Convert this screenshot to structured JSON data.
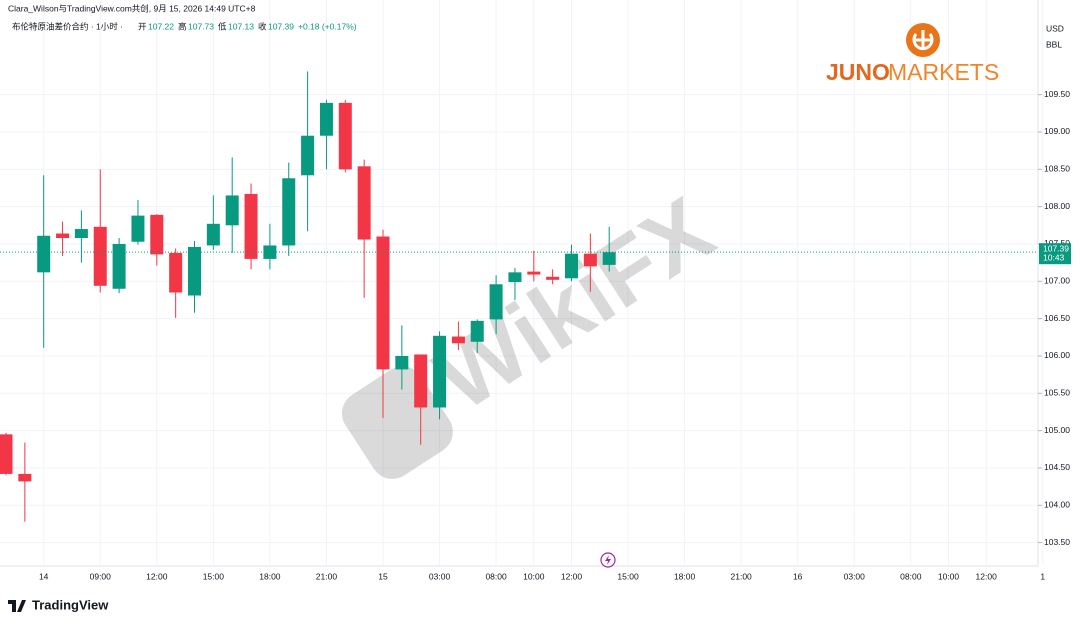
{
  "header": {
    "source": "Clara_Wilson与TradingView.com共创, 9月 15, 2026 14:49 UTC+8",
    "symbol": "布伦特原油差价合约 · 1小时 ·",
    "open_label": "开",
    "high_label": "高",
    "low_label": "低",
    "close_label": "收",
    "change": "+0.18 (+0.17%)"
  },
  "logo": {
    "brand": "JUNO",
    "suffix": "MARKETS"
  },
  "watermark": "WikiFX",
  "footer": "TradingView",
  "chart_data": {
    "type": "candlestick",
    "currency": "USD",
    "unit": "BBL",
    "countdown": "10:43",
    "up_color": "#089981",
    "down_color": "#f23645",
    "grid": true,
    "categories": [
      null,
      null,
      "14",
      null,
      null,
      "09:00",
      null,
      null,
      "12:00",
      null,
      null,
      "15:00",
      null,
      null,
      "18:00",
      null,
      null,
      "21:00",
      null,
      null,
      "15",
      null,
      null,
      "03:00",
      null,
      null,
      "08:00",
      null,
      "10:00",
      null,
      "12:00",
      null,
      null,
      "15:00",
      null,
      null,
      "18:00",
      null,
      null,
      "21:00",
      null,
      null,
      "16",
      null,
      null,
      "03:00",
      null,
      null,
      "08:00",
      null,
      "10:00",
      null,
      "12:00",
      null,
      null,
      "1"
    ],
    "open": [
      104.95,
      104.42,
      107.12,
      107.64,
      107.58,
      107.73,
      106.9,
      107.53,
      107.89,
      107.38,
      106.81,
      107.48,
      107.75,
      108.17,
      107.3,
      107.48,
      108.42,
      108.95,
      109.39,
      108.54,
      107.6,
      105.82,
      106.02,
      105.31,
      106.26,
      106.19,
      106.49,
      106.99,
      107.13,
      107.06,
      107.04,
      107.37,
      107.22,
      null,
      null,
      null,
      null,
      null,
      null,
      null,
      null,
      null,
      null,
      null,
      null,
      null,
      null,
      null,
      null,
      null,
      null,
      null,
      null,
      null,
      null,
      null
    ],
    "high": [
      104.97,
      104.84,
      108.42,
      107.8,
      107.95,
      108.5,
      107.58,
      108.09,
      107.9,
      107.44,
      107.54,
      108.15,
      108.66,
      108.31,
      107.77,
      108.59,
      109.81,
      109.43,
      109.43,
      108.63,
      107.69,
      106.41,
      106.02,
      106.33,
      106.46,
      106.49,
      107.08,
      107.18,
      107.41,
      107.16,
      107.49,
      107.64,
      107.73,
      null,
      null,
      null,
      null,
      null,
      null,
      null,
      null,
      null,
      null,
      null,
      null,
      null,
      null,
      null,
      null,
      null,
      null,
      null,
      null,
      null,
      null,
      null
    ],
    "low": [
      104.4,
      103.78,
      106.11,
      107.34,
      107.25,
      106.85,
      106.84,
      107.49,
      107.21,
      106.51,
      106.58,
      107.42,
      107.38,
      107.16,
      107.16,
      107.34,
      107.67,
      108.5,
      108.46,
      106.78,
      105.17,
      105.55,
      104.81,
      105.15,
      106.08,
      106.04,
      106.29,
      106.75,
      107.0,
      106.96,
      107.0,
      106.86,
      107.13,
      null,
      null,
      null,
      null,
      null,
      null,
      null,
      null,
      null,
      null,
      null,
      null,
      null,
      null,
      null,
      null,
      null,
      null,
      null,
      null,
      null,
      null,
      null
    ],
    "close": [
      104.42,
      104.32,
      107.61,
      107.58,
      107.7,
      106.94,
      107.5,
      107.88,
      107.36,
      106.85,
      107.46,
      107.77,
      108.15,
      107.3,
      107.48,
      108.38,
      108.95,
      109.39,
      108.5,
      107.56,
      105.82,
      106.0,
      105.31,
      106.27,
      106.17,
      106.47,
      106.96,
      107.12,
      107.09,
      107.02,
      107.37,
      107.2,
      107.39,
      null,
      null,
      null,
      null,
      null,
      null,
      null,
      null,
      null,
      null,
      null,
      null,
      null,
      null,
      null,
      null,
      null,
      null,
      null,
      null,
      null,
      null,
      null
    ],
    "ylim": [
      103.2,
      110.5
    ],
    "yticks": [
      {
        "value": 103.5,
        "label": "103.50"
      },
      {
        "value": 104,
        "label": "104.00"
      },
      {
        "value": 104.5,
        "label": "104.50"
      },
      {
        "value": 105,
        "label": "105.00"
      },
      {
        "value": 105.5,
        "label": "105.50"
      },
      {
        "value": 106,
        "label": "106.00"
      },
      {
        "value": 106.5,
        "label": "106.50"
      },
      {
        "value": 107,
        "label": "107.00"
      },
      {
        "value": 107.5,
        "label": "107.50"
      },
      {
        "value": 108,
        "label": "108.00"
      },
      {
        "value": 108.5,
        "label": "108.50"
      },
      {
        "value": 109,
        "label": "109.00"
      },
      {
        "value": 109.5,
        "label": "109.50"
      }
    ]
  }
}
